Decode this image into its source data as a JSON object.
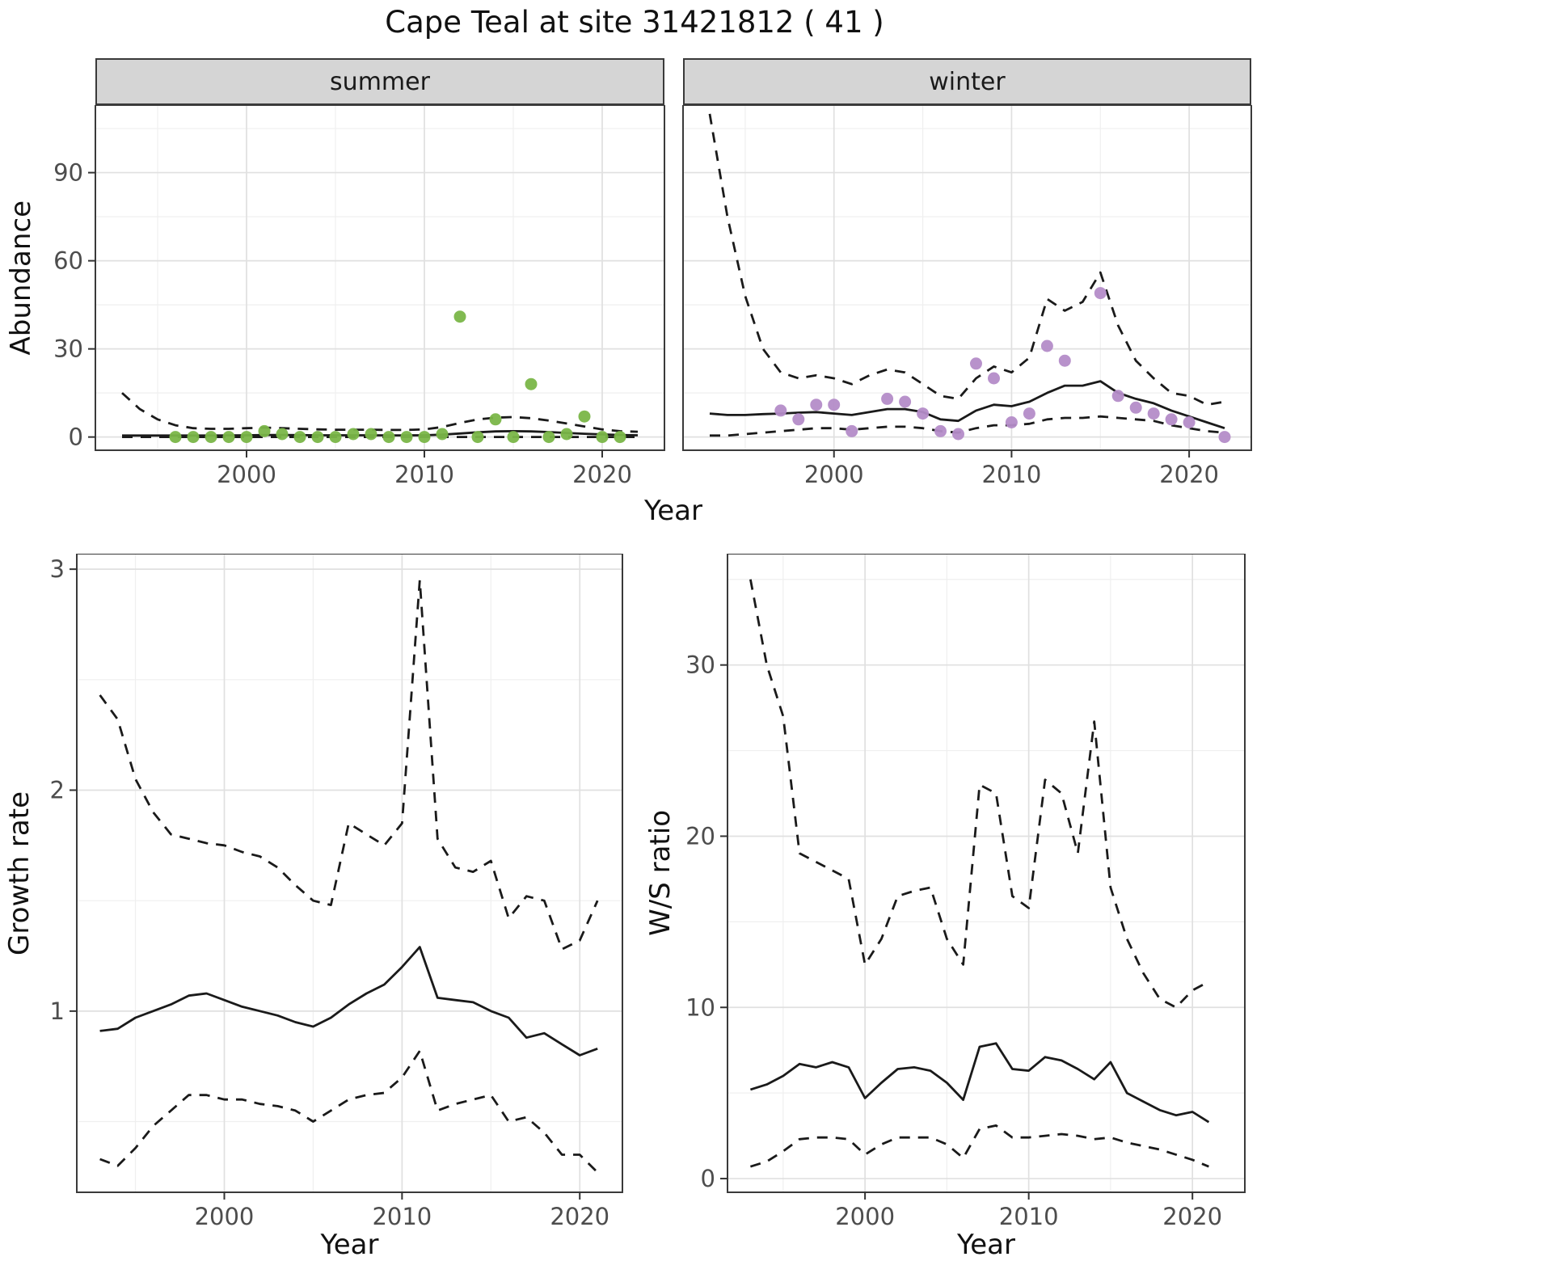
{
  "title": "Cape Teal at site 31421812 ( 41 )",
  "colors": {
    "summer_points": "#7ab648",
    "winter_points": "#b48cc8",
    "line": "#1a1a1a",
    "strip_background": "#d5d5d5",
    "panel_border": "#3a3a3a",
    "grid_major": "#e0e0e0",
    "grid_minor": "#efefef",
    "tick_text": "#4d4d4d"
  },
  "chart_data": [
    {
      "id": "summer_abundance",
      "type": "scatter",
      "facet_label": "summer",
      "xlabel": "Year",
      "ylabel": "Abundance",
      "xlim": [
        1991.5,
        2023.5
      ],
      "ylim": [
        -4.5,
        113
      ],
      "xticks": [
        2000,
        2010,
        2020
      ],
      "yticks": [
        0,
        30,
        60,
        90
      ],
      "show_y_tick_labels": true,
      "point_color": "#7ab648",
      "points": {
        "x": [
          1996,
          1997,
          1998,
          1999,
          2000,
          2001,
          2002,
          2003,
          2004,
          2005,
          2006,
          2007,
          2008,
          2009,
          2010,
          2011,
          2012,
          2013,
          2014,
          2015,
          2016,
          2017,
          2018,
          2019,
          2020,
          2021
        ],
        "y": [
          0,
          0,
          0,
          0,
          0,
          2,
          1,
          0,
          0,
          0,
          1,
          1,
          0,
          0,
          0,
          1,
          41,
          0,
          6,
          0,
          18,
          0,
          1,
          7,
          0,
          0
        ]
      },
      "lines": [
        {
          "name": "fit",
          "style": "solid",
          "x_from": 1993,
          "x_to": 2022,
          "y": [
            0.5,
            0.5,
            0.5,
            0.5,
            0.5,
            0.5,
            0.55,
            0.6,
            0.7,
            0.7,
            0.65,
            0.6,
            0.6,
            0.6,
            0.6,
            0.55,
            0.55,
            0.6,
            0.8,
            1.2,
            1.6,
            1.9,
            2.0,
            1.9,
            1.7,
            1.4,
            1.1,
            0.9,
            0.7,
            0.6
          ]
        },
        {
          "name": "upper_ci",
          "style": "dashed",
          "x_from": 1993,
          "x_to": 2022,
          "y": [
            15,
            9.5,
            6,
            4,
            3,
            2.8,
            2.8,
            3,
            3.2,
            3,
            2.8,
            2.6,
            2.5,
            2.5,
            2.5,
            2.4,
            2.4,
            2.6,
            3.4,
            4.8,
            6,
            6.6,
            6.8,
            6.4,
            5.6,
            4.6,
            3.6,
            2.6,
            2,
            1.8
          ]
        },
        {
          "name": "lower_ci",
          "style": "dashed",
          "x_from": 1993,
          "x_to": 2022,
          "y": [
            0,
            0,
            0,
            0,
            0,
            0,
            0,
            0,
            0,
            0,
            0,
            0,
            0,
            0,
            0,
            0,
            0,
            0,
            0,
            0,
            0,
            0,
            0,
            0,
            0,
            0,
            0,
            0,
            0,
            0
          ]
        }
      ]
    },
    {
      "id": "winter_abundance",
      "type": "scatter",
      "facet_label": "winter",
      "xlabel": "Year",
      "ylabel": "Abundance",
      "xlim": [
        1991.5,
        2023.5
      ],
      "ylim": [
        -4.5,
        113
      ],
      "xticks": [
        2000,
        2010,
        2020
      ],
      "yticks": [
        0,
        30,
        60,
        90
      ],
      "show_y_tick_labels": false,
      "point_color": "#b48cc8",
      "points": {
        "x": [
          1997,
          1998,
          1999,
          2000,
          2001,
          2003,
          2004,
          2005,
          2006,
          2007,
          2008,
          2009,
          2010,
          2011,
          2012,
          2013,
          2015,
          2016,
          2017,
          2018,
          2019,
          2020,
          2022
        ],
        "y": [
          9,
          6,
          11,
          11,
          2,
          13,
          12,
          8,
          2,
          1,
          25,
          20,
          5,
          8,
          31,
          26,
          49,
          14,
          10,
          8,
          6,
          5,
          0
        ]
      },
      "lines": [
        {
          "name": "fit",
          "style": "solid",
          "x_from": 1993,
          "x_to": 2022,
          "y": [
            8,
            7.5,
            7.5,
            7.8,
            8,
            8.3,
            8.5,
            8,
            7.5,
            8.5,
            9.5,
            9.5,
            8.5,
            6,
            5.5,
            9,
            11,
            10.5,
            12,
            15,
            17.5,
            17.5,
            19,
            15,
            13,
            11.5,
            9,
            7,
            5,
            3
          ]
        },
        {
          "name": "upper_ci",
          "style": "dashed",
          "x_from": 1993,
          "x_to": 2022,
          "y": [
            110,
            75,
            48,
            30,
            22,
            20,
            21,
            20,
            18,
            21,
            23,
            22,
            18,
            14,
            13,
            20,
            24,
            22,
            27,
            47,
            43,
            46,
            56,
            38,
            26,
            20,
            15,
            14,
            11,
            12
          ]
        },
        {
          "name": "lower_ci",
          "style": "dashed",
          "x_from": 1993,
          "x_to": 2022,
          "y": [
            0.5,
            0.5,
            1,
            1.5,
            2,
            2.5,
            3,
            3,
            2.5,
            3,
            3.5,
            3.5,
            3,
            2,
            1.5,
            3,
            4,
            4,
            4.5,
            6,
            6.5,
            6.5,
            7,
            6.5,
            6,
            5.5,
            4,
            3,
            2,
            1.5
          ]
        }
      ]
    },
    {
      "id": "growth_rate",
      "type": "line",
      "facet_label": "",
      "xlabel": "Year",
      "ylabel": "Growth rate",
      "xlim": [
        1991.7,
        2022.4
      ],
      "ylim": [
        0.18,
        3.07
      ],
      "xticks": [
        2000,
        2010,
        2020
      ],
      "yticks": [
        1,
        2,
        3
      ],
      "show_y_tick_labels": true,
      "lines": [
        {
          "name": "fit",
          "style": "solid",
          "x_from": 1993,
          "x_to": 2021,
          "y": [
            0.91,
            0.92,
            0.97,
            1.0,
            1.03,
            1.07,
            1.08,
            1.05,
            1.02,
            1.0,
            0.98,
            0.95,
            0.93,
            0.97,
            1.03,
            1.08,
            1.12,
            1.2,
            1.29,
            1.06,
            1.05,
            1.04,
            1.0,
            0.97,
            0.88,
            0.9,
            0.85,
            0.8,
            0.83
          ]
        },
        {
          "name": "upper_ci",
          "style": "dashed",
          "x_from": 1993,
          "x_to": 2021,
          "y": [
            2.43,
            2.32,
            2.05,
            1.9,
            1.8,
            1.78,
            1.76,
            1.75,
            1.72,
            1.7,
            1.65,
            1.57,
            1.5,
            1.48,
            1.85,
            1.8,
            1.75,
            1.85,
            2.95,
            1.78,
            1.65,
            1.63,
            1.68,
            1.42,
            1.52,
            1.5,
            1.28,
            1.32,
            1.5
          ]
        },
        {
          "name": "lower_ci",
          "style": "dashed",
          "x_from": 1993,
          "x_to": 2021,
          "y": [
            0.33,
            0.3,
            0.38,
            0.48,
            0.55,
            0.62,
            0.62,
            0.6,
            0.6,
            0.58,
            0.57,
            0.55,
            0.5,
            0.55,
            0.6,
            0.62,
            0.63,
            0.7,
            0.82,
            0.55,
            0.58,
            0.6,
            0.62,
            0.5,
            0.52,
            0.45,
            0.35,
            0.35,
            0.27
          ]
        }
      ]
    },
    {
      "id": "ws_ratio",
      "type": "line",
      "facet_label": "",
      "xlabel": "Year",
      "ylabel": "W/S ratio",
      "xlim": [
        1991.6,
        2023.2
      ],
      "ylim": [
        -0.8,
        36.5
      ],
      "xticks": [
        2000,
        2010,
        2020
      ],
      "yticks": [
        0,
        10,
        20,
        30
      ],
      "show_y_tick_labels": true,
      "lines": [
        {
          "name": "fit",
          "style": "solid",
          "x_from": 1993,
          "x_to": 2021,
          "y": [
            5.2,
            5.5,
            6.0,
            6.7,
            6.5,
            6.8,
            6.5,
            4.7,
            5.6,
            6.4,
            6.5,
            6.3,
            5.6,
            4.6,
            7.7,
            7.9,
            6.4,
            6.3,
            7.1,
            6.9,
            6.4,
            5.8,
            6.8,
            5.0,
            4.5,
            4.0,
            3.7,
            3.9,
            3.3
          ]
        },
        {
          "name": "upper_ci",
          "style": "dashed",
          "x_from": 1993,
          "x_to": 2021,
          "y": [
            35,
            30,
            27,
            19,
            18.5,
            18,
            17.5,
            12.5,
            14,
            16.5,
            16.8,
            17,
            14,
            12.5,
            23,
            22.5,
            16.5,
            15.8,
            23.3,
            22.5,
            19,
            26.7,
            17,
            14,
            12,
            10.5,
            10,
            11,
            11.5
          ]
        },
        {
          "name": "lower_ci",
          "style": "dashed",
          "x_from": 1993,
          "x_to": 2021,
          "y": [
            0.7,
            1.0,
            1.6,
            2.3,
            2.4,
            2.4,
            2.3,
            1.4,
            2.0,
            2.4,
            2.4,
            2.4,
            2.0,
            1.2,
            2.9,
            3.1,
            2.4,
            2.4,
            2.5,
            2.6,
            2.5,
            2.3,
            2.4,
            2.1,
            1.9,
            1.7,
            1.4,
            1.1,
            0.7
          ]
        }
      ]
    }
  ]
}
